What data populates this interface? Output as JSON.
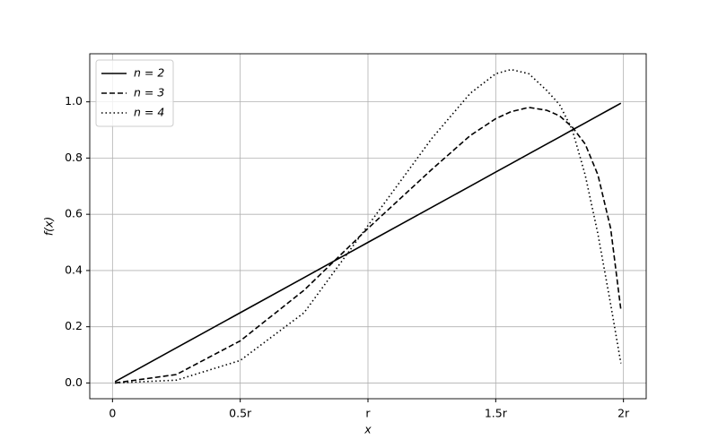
{
  "chart_data": {
    "type": "line",
    "xlabel": "x",
    "ylabel": "f(x)",
    "x": [
      0.01,
      0.25,
      0.5,
      0.75,
      1.0,
      1.25,
      1.4,
      1.5,
      1.56,
      1.63,
      1.7,
      1.75,
      1.8,
      1.85,
      1.9,
      1.95,
      1.99
    ],
    "series": [
      {
        "name": "n = 2",
        "color": "#000000",
        "dash": "solid",
        "values": [
          0.005,
          0.125,
          0.25,
          0.375,
          0.5,
          0.625,
          0.7,
          0.75,
          0.78,
          0.815,
          0.85,
          0.875,
          0.9,
          0.925,
          0.95,
          0.975,
          0.995
        ]
      },
      {
        "name": "n = 3",
        "color": "#000000",
        "dash": "dashed",
        "values": [
          0.0,
          0.03,
          0.15,
          0.33,
          0.55,
          0.76,
          0.88,
          0.94,
          0.965,
          0.98,
          0.97,
          0.95,
          0.91,
          0.85,
          0.74,
          0.55,
          0.26
        ]
      },
      {
        "name": "n = 4",
        "color": "#000000",
        "dash": "dotted",
        "values": [
          0.0,
          0.01,
          0.08,
          0.25,
          0.56,
          0.87,
          1.03,
          1.1,
          1.115,
          1.1,
          1.04,
          0.99,
          0.9,
          0.74,
          0.53,
          0.28,
          0.07
        ]
      }
    ],
    "xlim": [
      -0.089,
      2.089
    ],
    "ylim": [
      -0.056,
      1.171
    ],
    "xticks": [
      0,
      {
        "value": 0.5,
        "label": "0.5r"
      },
      {
        "value": 1,
        "label": "r"
      },
      {
        "value": 1.5,
        "label": "1.5r"
      },
      {
        "value": 2,
        "label": "2r"
      }
    ],
    "yticks": [
      {
        "value": 0,
        "label": "0.0"
      },
      0.2,
      0.4,
      0.6,
      0.8,
      {
        "value": 1,
        "label": "1.0"
      }
    ],
    "grid": true,
    "legend": "upper-left"
  }
}
